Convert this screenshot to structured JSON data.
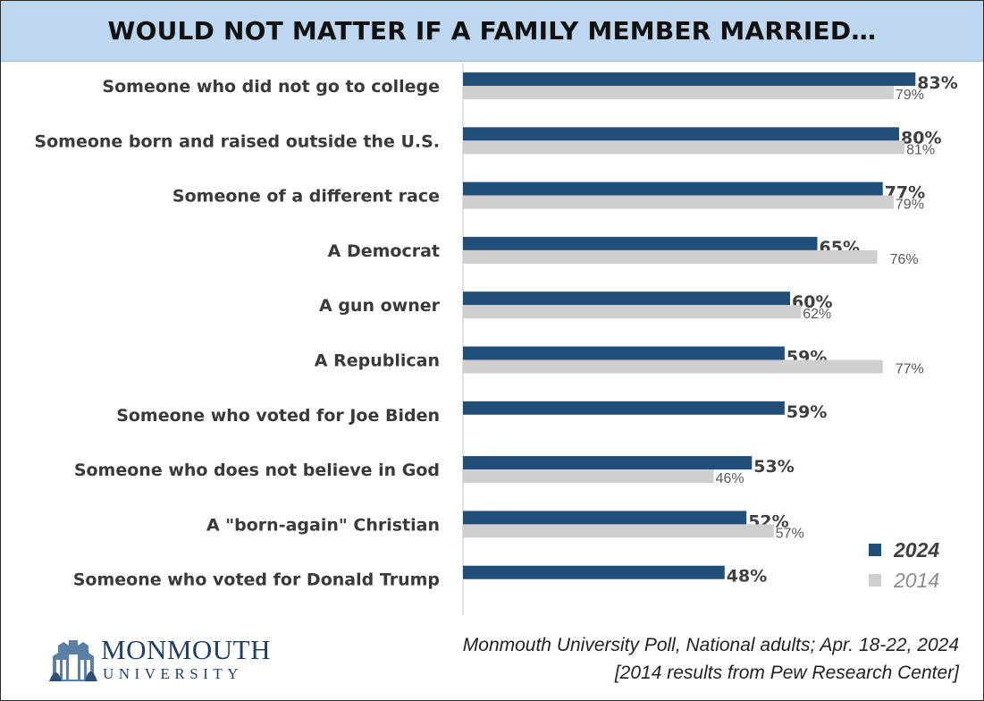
{
  "title": "WOULD NOT MATTER IF A FAMILY MEMBER MARRIED…",
  "chart_data": {
    "type": "bar",
    "orientation": "horizontal",
    "title": "WOULD NOT MATTER IF A FAMILY MEMBER MARRIED…",
    "categories": [
      "Someone who did not go to college",
      "Someone born and raised outside the U.S.",
      "Someone of a different race",
      "A Democrat",
      "A gun owner",
      "A Republican",
      "Someone who voted for Joe Biden",
      "Someone who does not believe in God",
      "A \"born-again\" Christian",
      "Someone who voted for Donald Trump"
    ],
    "series": [
      {
        "name": "2024",
        "color": "#1f4e79",
        "values": [
          83,
          80,
          77,
          65,
          60,
          59,
          59,
          53,
          52,
          48
        ]
      },
      {
        "name": "2014",
        "color": "#d0cece",
        "values": [
          79,
          81,
          79,
          76,
          62,
          77,
          null,
          46,
          57,
          null
        ]
      }
    ],
    "value_labels": {
      "2024": [
        "83%",
        "80%",
        "77%",
        "65%",
        "60%",
        "59%",
        "59%",
        "53%",
        "52%",
        "48%"
      ],
      "2014": [
        "79%",
        "81%",
        "79%",
        "76%",
        "62%",
        "77%",
        "",
        "46%",
        "57%",
        ""
      ]
    },
    "xlim": [
      0,
      100
    ],
    "legend_position": "bottom-right",
    "grid": false
  },
  "footer": {
    "logo_name": "MONMOUTH",
    "logo_sub": "UNIVERSITY",
    "source_line1": "Monmouth University Poll, National adults; Apr. 18-22, 2024",
    "source_line2": "[2014 results from Pew Research Center]"
  }
}
